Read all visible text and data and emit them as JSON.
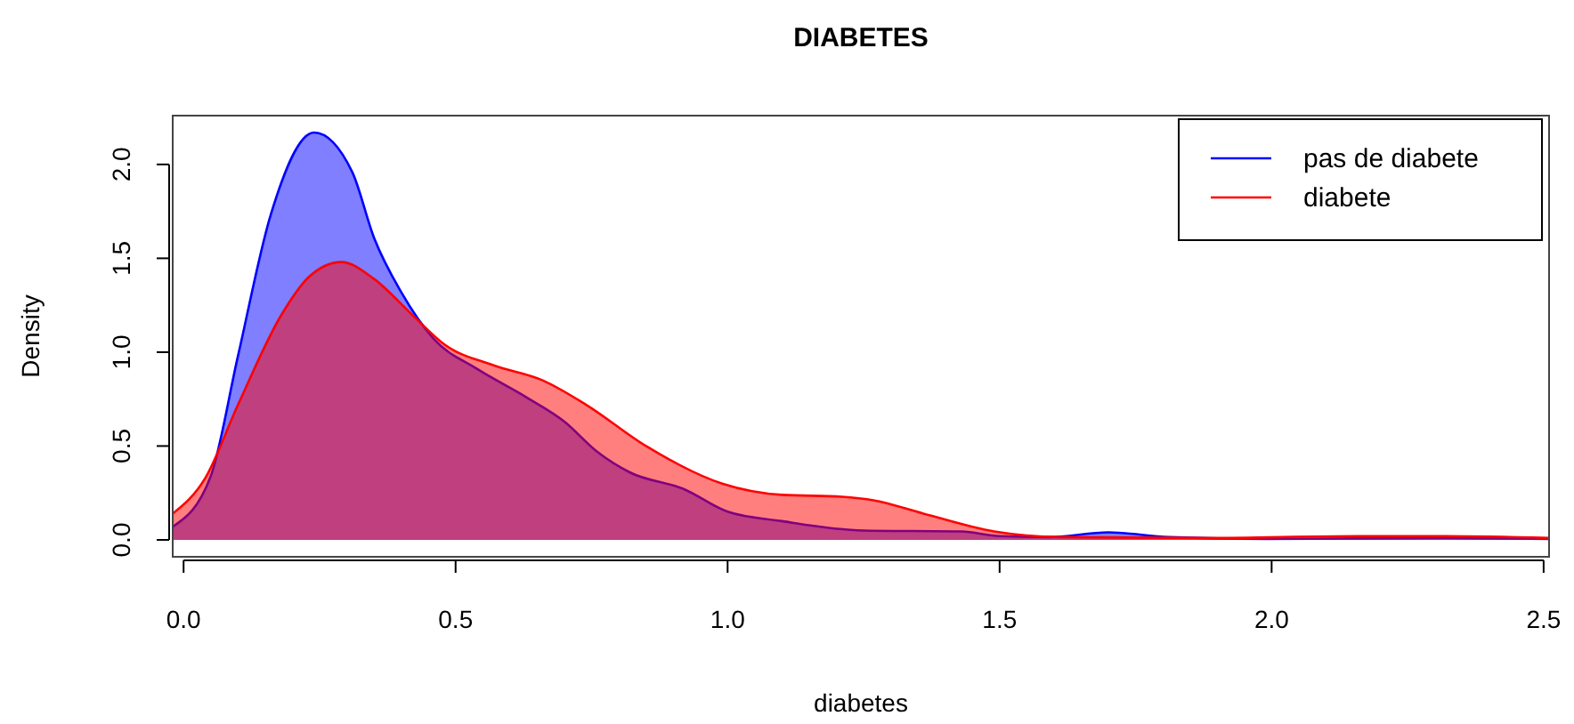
{
  "chart_data": {
    "type": "area",
    "title": "DIABETES",
    "xlabel": "diabetes",
    "ylabel": "Density",
    "xlim": [
      -0.02,
      2.51
    ],
    "ylim": [
      -0.09,
      2.26
    ],
    "xticks": [
      {
        "value": 0,
        "label": "0.0"
      },
      0.5,
      {
        "value": 1,
        "label": "1.0"
      },
      1.5,
      {
        "value": 2,
        "label": "2.0"
      },
      2.5
    ],
    "yticks": [
      {
        "value": 0,
        "label": "0.0"
      },
      0.5,
      {
        "value": 1,
        "label": "1.0"
      },
      1.5,
      {
        "value": 2,
        "label": "2.0"
      }
    ],
    "grid": false,
    "legend": "top right",
    "series": [
      {
        "name": "pas de diabete",
        "color": "#0000ff",
        "x": [
          -0.02,
          0.05,
          0.1,
          0.16,
          0.24,
          0.31,
          0.35,
          0.4,
          0.46,
          0.54,
          0.63,
          0.7,
          0.76,
          0.82,
          0.92,
          1.0,
          1.1,
          1.25,
          1.43,
          1.5,
          1.59,
          1.7,
          1.81,
          1.99,
          2.32,
          2.51
        ],
        "values": [
          0.07,
          0.34,
          0.98,
          1.73,
          2.17,
          1.96,
          1.61,
          1.32,
          1.07,
          0.91,
          0.76,
          0.63,
          0.47,
          0.36,
          0.27,
          0.15,
          0.1,
          0.05,
          0.045,
          0.02,
          0.015,
          0.04,
          0.015,
          0.005,
          0.01,
          0.005
        ]
      },
      {
        "name": "diabete",
        "color": "#ff0000",
        "x": [
          -0.02,
          0.04,
          0.1,
          0.18,
          0.23,
          0.29,
          0.35,
          0.42,
          0.48,
          0.57,
          0.66,
          0.74,
          0.85,
          0.99,
          1.1,
          1.21,
          1.27,
          1.36,
          1.49,
          1.61,
          1.88,
          2.16,
          2.32,
          2.51
        ],
        "values": [
          0.14,
          0.33,
          0.72,
          1.2,
          1.4,
          1.48,
          1.39,
          1.2,
          1.04,
          0.93,
          0.85,
          0.72,
          0.5,
          0.3,
          0.24,
          0.23,
          0.21,
          0.14,
          0.045,
          0.015,
          0.01,
          0.02,
          0.02,
          0.01
        ]
      }
    ]
  }
}
